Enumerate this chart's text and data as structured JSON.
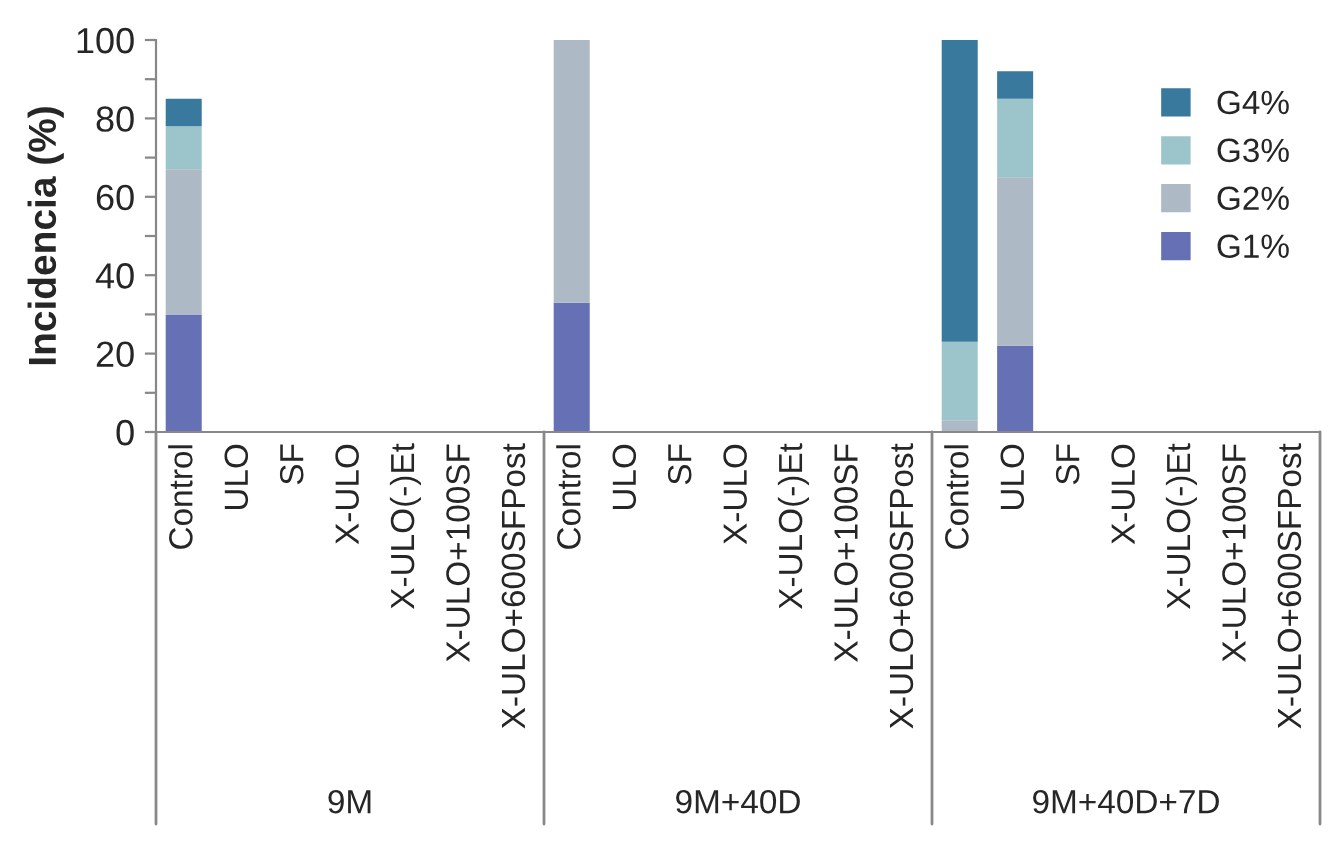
{
  "chart_data": {
    "type": "bar",
    "stacked": true,
    "ylabel": "Incidencia (%)",
    "categories": [
      "Control",
      "ULO",
      "SF",
      "X-ULO",
      "X-ULO(-)Et",
      "X-ULO+100SF",
      "X-ULO+600SFPost",
      "Control",
      "ULO",
      "SF",
      "X-ULO",
      "X-ULO(-)Et",
      "X-ULO+100SF",
      "X-ULO+600SFPost",
      "Control",
      "ULO",
      "SF",
      "X-ULO",
      "X-ULO(-)Et",
      "X-ULO+100SF",
      "X-ULO+600SFPost"
    ],
    "series": [
      {
        "name": "G1%",
        "color": "#6570b5",
        "values": [
          30,
          0,
          0,
          0,
          0,
          0,
          0,
          33,
          0,
          0,
          0,
          0,
          0,
          0,
          0,
          22,
          0,
          0,
          0,
          0,
          0
        ]
      },
      {
        "name": "G2%",
        "color": "#adb9c5",
        "values": [
          37,
          0,
          0,
          0,
          0,
          0,
          0,
          67,
          0,
          0,
          0,
          0,
          0,
          0,
          3,
          43,
          0,
          0,
          0,
          0,
          0
        ]
      },
      {
        "name": "G3%",
        "color": "#9bc5cb",
        "values": [
          11,
          0,
          0,
          0,
          0,
          0,
          0,
          0,
          0,
          0,
          0,
          0,
          0,
          0,
          20,
          20,
          0,
          0,
          0,
          0,
          0
        ]
      },
      {
        "name": "G4%",
        "color": "#39799d",
        "values": [
          7,
          0,
          0,
          0,
          0,
          0,
          0,
          0,
          0,
          0,
          0,
          0,
          0,
          0,
          77,
          7,
          0,
          0,
          0,
          0,
          0
        ]
      }
    ],
    "ylim": [
      0,
      100
    ],
    "yticks": [
      0,
      {
        "value": 10,
        "label": null
      },
      20,
      {
        "value": 30,
        "label": null
      },
      40,
      {
        "value": 50,
        "label": null
      },
      60,
      {
        "value": 70,
        "label": null
      },
      80,
      {
        "value": 90,
        "label": null
      },
      100
    ],
    "annotations": [
      "9M",
      "9M+40D",
      "9M+40D+7D"
    ],
    "legend": "top right",
    "grid": false
  }
}
